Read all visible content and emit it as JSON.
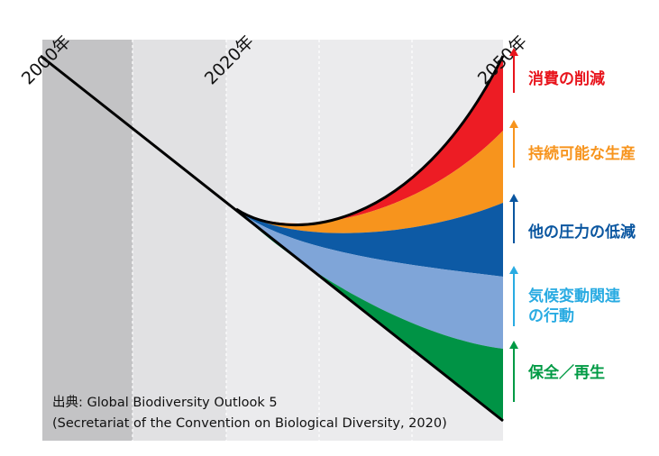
{
  "years": [
    "2000年",
    "2020年",
    "2050年"
  ],
  "levers": [
    {
      "label": "消費の削減",
      "color": "#e8141c"
    },
    {
      "label": "持続可能な生産",
      "color": "#f7941d"
    },
    {
      "label": "他の圧力の低減",
      "color": "#0a56a0"
    },
    {
      "label_lines": [
        "気候変動関連",
        "の行動"
      ],
      "color": "#29abe2"
    },
    {
      "label": "保全／再生",
      "color": "#009a44"
    }
  ],
  "band_colors": {
    "consumption": "#ed1c24",
    "production": "#f7941d",
    "pressures": "#0d5aa5",
    "climate": "#7fa5d8",
    "conservation": "#009345"
  },
  "source": {
    "line1": "出典: Global Biodiversity Outlook 5",
    "line2": "(Secretariat of the Convention on Biological Diversity, 2020)"
  }
}
